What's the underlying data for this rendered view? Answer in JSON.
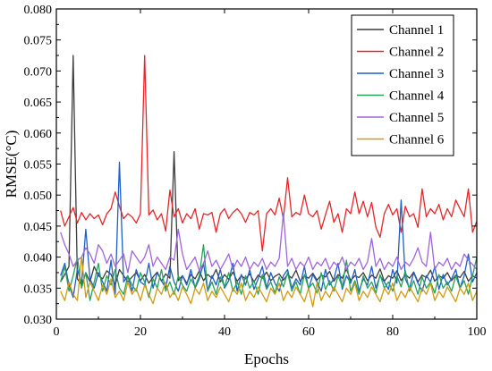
{
  "chart_data": {
    "type": "line",
    "title": "",
    "xlabel": "Epochs",
    "ylabel": "RMSE(°C)",
    "xlim": [
      0,
      100
    ],
    "ylim": [
      0.03,
      0.08
    ],
    "xticks": [
      0,
      20,
      40,
      60,
      80,
      100
    ],
    "yticks": [
      0.03,
      0.035,
      0.04,
      0.045,
      0.05,
      0.055,
      0.06,
      0.065,
      0.07,
      0.075,
      0.08
    ],
    "xtick_labels": [
      "0",
      "20",
      "40",
      "60",
      "80",
      "100"
    ],
    "ytick_labels": [
      "0.030",
      "0.035",
      "0.040",
      "0.045",
      "0.050",
      "0.055",
      "0.060",
      "0.065",
      "0.070",
      "0.075",
      "0.080"
    ],
    "grid": false,
    "legend_position": "top-right",
    "x": [
      1,
      2,
      3,
      4,
      5,
      6,
      7,
      8,
      9,
      10,
      11,
      12,
      13,
      14,
      15,
      16,
      17,
      18,
      19,
      20,
      21,
      22,
      23,
      24,
      25,
      26,
      27,
      28,
      29,
      30,
      31,
      32,
      33,
      34,
      35,
      36,
      37,
      38,
      39,
      40,
      41,
      42,
      43,
      44,
      45,
      46,
      47,
      48,
      49,
      50,
      51,
      52,
      53,
      54,
      55,
      56,
      57,
      58,
      59,
      60,
      61,
      62,
      63,
      64,
      65,
      66,
      67,
      68,
      69,
      70,
      71,
      72,
      73,
      74,
      75,
      76,
      77,
      78,
      79,
      80,
      81,
      82,
      83,
      84,
      85,
      86,
      87,
      88,
      89,
      90,
      91,
      92,
      93,
      94,
      95,
      96,
      97,
      98,
      99,
      100
    ],
    "series": [
      {
        "name": "Channel 1",
        "color": "#3c3c3c",
        "values": [
          0.036,
          0.0372,
          0.0385,
          0.0725,
          0.0365,
          0.0355,
          0.0375,
          0.036,
          0.0385,
          0.037,
          0.0365,
          0.0378,
          0.0372,
          0.0355,
          0.038,
          0.037,
          0.036,
          0.0368,
          0.0375,
          0.0362,
          0.0372,
          0.0358,
          0.0368,
          0.0376,
          0.0361,
          0.0373,
          0.0366,
          0.057,
          0.0362,
          0.037,
          0.0358,
          0.0372,
          0.0365,
          0.0378,
          0.0362,
          0.0372,
          0.0366,
          0.038,
          0.036,
          0.0372,
          0.0364,
          0.0376,
          0.0361,
          0.037,
          0.0365,
          0.0373,
          0.036,
          0.0371,
          0.0366,
          0.0376,
          0.0362,
          0.0369,
          0.0373,
          0.0363,
          0.0372,
          0.0366,
          0.0379,
          0.0361,
          0.037,
          0.0366,
          0.0374,
          0.0363,
          0.0371,
          0.0368,
          0.0377,
          0.0361,
          0.0372,
          0.0366,
          0.0381,
          0.0362,
          0.037,
          0.0367,
          0.0375,
          0.0362,
          0.0371,
          0.0366,
          0.0381,
          0.0361,
          0.037,
          0.0366,
          0.0378,
          0.0362,
          0.0372,
          0.0366,
          0.0376,
          0.036,
          0.0371,
          0.0367,
          0.0379,
          0.0361,
          0.037,
          0.0366,
          0.0375,
          0.0362,
          0.0371,
          0.0367,
          0.0377,
          0.0361,
          0.037,
          0.0366
        ]
      },
      {
        "name": "Channel 2",
        "color": "#e8262a",
        "values": [
          0.0475,
          0.045,
          0.0465,
          0.048,
          0.0455,
          0.0472,
          0.046,
          0.047,
          0.0462,
          0.0468,
          0.0452,
          0.047,
          0.0478,
          0.0505,
          0.0482,
          0.0462,
          0.047,
          0.0465,
          0.0455,
          0.047,
          0.0725,
          0.0468,
          0.0476,
          0.046,
          0.047,
          0.0442,
          0.0508,
          0.0465,
          0.0478,
          0.0455,
          0.047,
          0.0462,
          0.0478,
          0.0445,
          0.047,
          0.0468,
          0.0472,
          0.044,
          0.047,
          0.0478,
          0.0462,
          0.0472,
          0.0478,
          0.047,
          0.0456,
          0.0472,
          0.0468,
          0.0475,
          0.041,
          0.047,
          0.0478,
          0.0468,
          0.0495,
          0.0462,
          0.0528,
          0.0465,
          0.0472,
          0.0468,
          0.05,
          0.047,
          0.0465,
          0.0475,
          0.0445,
          0.0468,
          0.049,
          0.0456,
          0.047,
          0.044,
          0.0478,
          0.047,
          0.0505,
          0.047,
          0.049,
          0.0465,
          0.0488,
          0.0448,
          0.0432,
          0.047,
          0.0485,
          0.0468,
          0.0478,
          0.044,
          0.0482,
          0.0465,
          0.047,
          0.0448,
          0.051,
          0.0465,
          0.0478,
          0.047,
          0.0485,
          0.046,
          0.0478,
          0.0465,
          0.0492,
          0.0478,
          0.0465,
          0.051,
          0.044,
          0.0458
        ]
      },
      {
        "name": "Channel 3",
        "color": "#1f5fc8",
        "values": [
          0.037,
          0.039,
          0.0355,
          0.0335,
          0.038,
          0.0358,
          0.0445,
          0.0365,
          0.035,
          0.0375,
          0.036,
          0.0345,
          0.0395,
          0.034,
          0.0553,
          0.036,
          0.037,
          0.0345,
          0.038,
          0.036,
          0.0355,
          0.039,
          0.035,
          0.0375,
          0.0362,
          0.035,
          0.0385,
          0.036,
          0.0345,
          0.037,
          0.0355,
          0.038,
          0.035,
          0.0365,
          0.039,
          0.0345,
          0.037,
          0.0355,
          0.038,
          0.035,
          0.0362,
          0.039,
          0.0345,
          0.0372,
          0.0355,
          0.038,
          0.0348,
          0.0365,
          0.0385,
          0.035,
          0.0375,
          0.0358,
          0.0345,
          0.037,
          0.038,
          0.035,
          0.0365,
          0.0355,
          0.0385,
          0.0348,
          0.0372,
          0.036,
          0.0345,
          0.038,
          0.0355,
          0.0365,
          0.039,
          0.0348,
          0.037,
          0.0358,
          0.038,
          0.0345,
          0.0365,
          0.0355,
          0.0385,
          0.035,
          0.037,
          0.036,
          0.0348,
          0.038,
          0.0358,
          0.0492,
          0.0365,
          0.035,
          0.0375,
          0.0358,
          0.0345,
          0.037,
          0.036,
          0.0385,
          0.0348,
          0.0372,
          0.0355,
          0.0365,
          0.038,
          0.035,
          0.037,
          0.0405,
          0.036,
          0.0375
        ]
      },
      {
        "name": "Channel 4",
        "color": "#26a35a",
        "values": [
          0.036,
          0.0385,
          0.0345,
          0.037,
          0.04,
          0.035,
          0.0375,
          0.033,
          0.036,
          0.039,
          0.0345,
          0.037,
          0.0355,
          0.038,
          0.035,
          0.034,
          0.037,
          0.0355,
          0.0345,
          0.0375,
          0.036,
          0.0335,
          0.0365,
          0.035,
          0.038,
          0.0345,
          0.036,
          0.034,
          0.037,
          0.0355,
          0.0345,
          0.0365,
          0.0352,
          0.037,
          0.042,
          0.0345,
          0.036,
          0.034,
          0.0368,
          0.0352,
          0.0375,
          0.0345,
          0.036,
          0.034,
          0.037,
          0.035,
          0.0362,
          0.034,
          0.0372,
          0.0348,
          0.036,
          0.0342,
          0.0368,
          0.0352,
          0.0375,
          0.0345,
          0.036,
          0.034,
          0.0372,
          0.035,
          0.0358,
          0.0342,
          0.0375,
          0.0348,
          0.0362,
          0.0345,
          0.037,
          0.0352,
          0.0395,
          0.0345,
          0.0362,
          0.034,
          0.037,
          0.035,
          0.036,
          0.0342,
          0.0372,
          0.035,
          0.036,
          0.0345,
          0.037,
          0.0352,
          0.0378,
          0.0345,
          0.0362,
          0.034,
          0.0368,
          0.035,
          0.036,
          0.0342,
          0.0372,
          0.035,
          0.036,
          0.0345,
          0.037,
          0.035,
          0.0362,
          0.034,
          0.037,
          0.04
        ]
      },
      {
        "name": "Channel 5",
        "color": "#a064dc",
        "values": [
          0.044,
          0.042,
          0.0405,
          0.0385,
          0.0395,
          0.04,
          0.0415,
          0.0405,
          0.039,
          0.042,
          0.041,
          0.039,
          0.0405,
          0.0385,
          0.0395,
          0.0405,
          0.0375,
          0.041,
          0.04,
          0.039,
          0.04,
          0.042,
          0.0385,
          0.04,
          0.039,
          0.038,
          0.04,
          0.0395,
          0.0445,
          0.0405,
          0.038,
          0.039,
          0.04,
          0.0378,
          0.039,
          0.041,
          0.0385,
          0.0395,
          0.038,
          0.0392,
          0.0405,
          0.038,
          0.0395,
          0.0385,
          0.04,
          0.038,
          0.0392,
          0.0385,
          0.0398,
          0.038,
          0.0392,
          0.0385,
          0.0398,
          0.047,
          0.0385,
          0.0398,
          0.038,
          0.0392,
          0.0385,
          0.04,
          0.038,
          0.0392,
          0.0386,
          0.0398,
          0.038,
          0.0392,
          0.0385,
          0.04,
          0.038,
          0.0392,
          0.0386,
          0.0398,
          0.038,
          0.0392,
          0.043,
          0.0385,
          0.0398,
          0.038,
          0.0392,
          0.0385,
          0.04,
          0.038,
          0.0392,
          0.0386,
          0.0398,
          0.0415,
          0.0392,
          0.0385,
          0.044,
          0.038,
          0.0392,
          0.0386,
          0.0398,
          0.038,
          0.0392,
          0.0385,
          0.0405,
          0.0395,
          0.0388,
          0.038
        ]
      },
      {
        "name": "Channel 6",
        "color": "#d29a10",
        "values": [
          0.0345,
          0.033,
          0.036,
          0.034,
          0.033,
          0.04,
          0.0335,
          0.036,
          0.0345,
          0.033,
          0.0355,
          0.034,
          0.0365,
          0.0335,
          0.0345,
          0.033,
          0.036,
          0.034,
          0.035,
          0.033,
          0.0355,
          0.034,
          0.0325,
          0.035,
          0.034,
          0.036,
          0.0335,
          0.0345,
          0.033,
          0.0352,
          0.034,
          0.0325,
          0.035,
          0.034,
          0.0358,
          0.033,
          0.0345,
          0.0335,
          0.0352,
          0.034,
          0.0328,
          0.035,
          0.034,
          0.0358,
          0.033,
          0.0345,
          0.0335,
          0.0352,
          0.034,
          0.0328,
          0.035,
          0.034,
          0.0358,
          0.033,
          0.0345,
          0.0335,
          0.0352,
          0.034,
          0.0328,
          0.035,
          0.032,
          0.0358,
          0.033,
          0.0345,
          0.0335,
          0.0352,
          0.034,
          0.0328,
          0.035,
          0.034,
          0.0358,
          0.033,
          0.0345,
          0.0335,
          0.0352,
          0.034,
          0.0328,
          0.035,
          0.034,
          0.0358,
          0.033,
          0.0345,
          0.0335,
          0.0352,
          0.034,
          0.0328,
          0.035,
          0.034,
          0.0358,
          0.033,
          0.0345,
          0.0335,
          0.0352,
          0.034,
          0.0328,
          0.035,
          0.034,
          0.0358,
          0.033,
          0.0345
        ]
      }
    ]
  }
}
